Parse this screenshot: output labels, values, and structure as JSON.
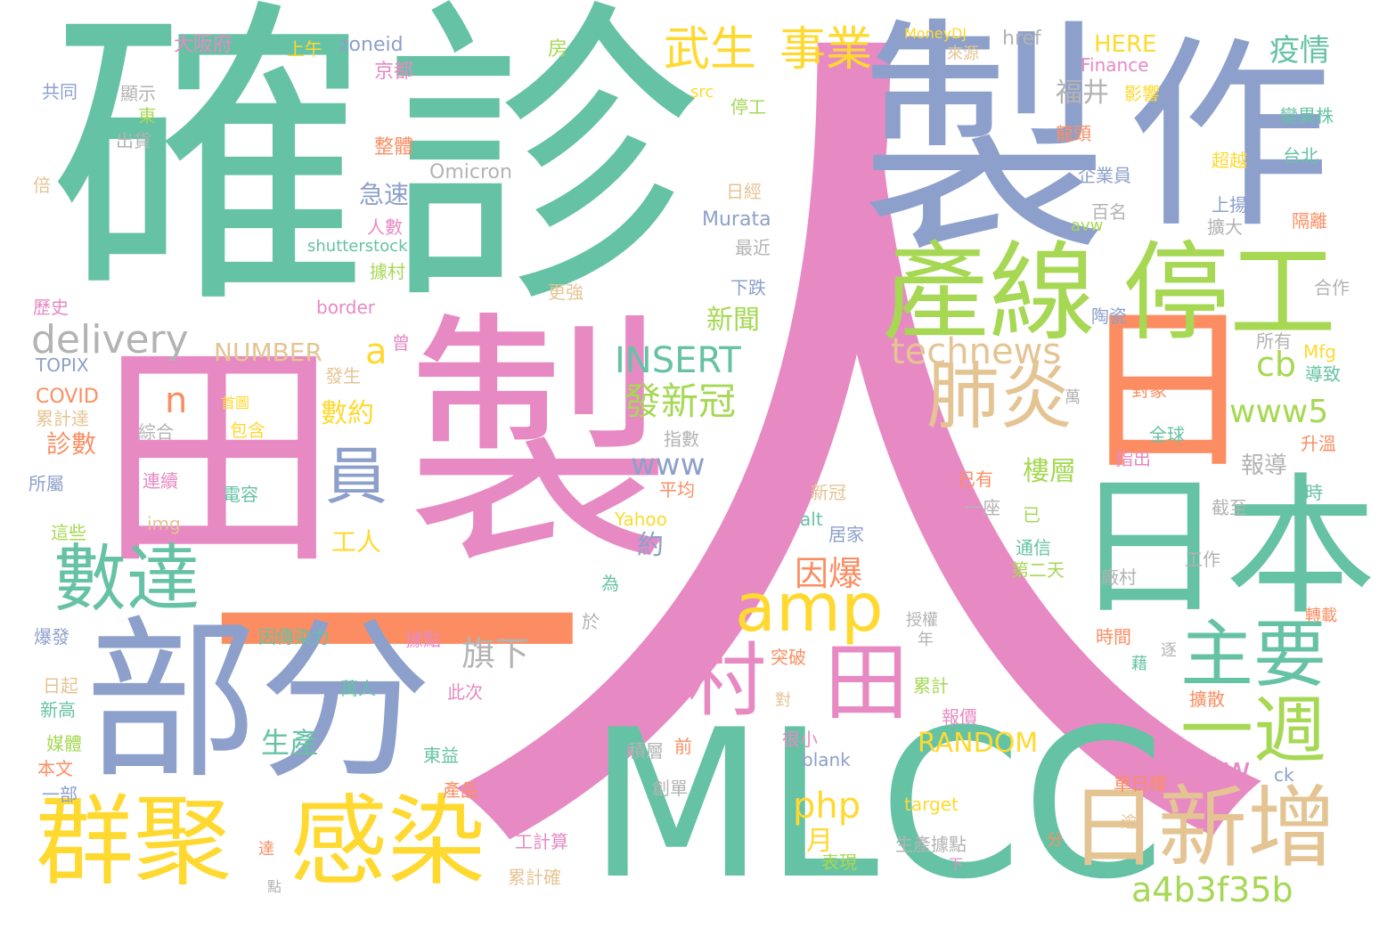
{
  "palette": {
    "teal": "#66c2a5",
    "orange": "#fc8d62",
    "blue": "#8da0cb",
    "pink": "#e78ac3",
    "green": "#a6d854",
    "yellow": "#ffd92f",
    "tan": "#e5c494",
    "gray": "#b3b3b3"
  },
  "words": [
    {
      "text": "人",
      "color": "pink"
    },
    {
      "text": "確",
      "color": "teal"
    },
    {
      "text": "診",
      "color": "teal"
    },
    {
      "text": "製",
      "color": "blue"
    },
    {
      "text": "作",
      "color": "blue"
    },
    {
      "text": "製",
      "color": "pink"
    },
    {
      "text": "田",
      "color": "pink"
    },
    {
      "text": "一",
      "color": "orange"
    },
    {
      "text": "部分",
      "color": "blue"
    },
    {
      "text": "MLCC",
      "color": "teal"
    },
    {
      "text": "日",
      "color": "orange"
    },
    {
      "text": "日本",
      "color": "teal"
    },
    {
      "text": "產線",
      "color": "green"
    },
    {
      "text": "停工",
      "color": "green"
    },
    {
      "text": "群聚",
      "color": "yellow"
    },
    {
      "text": "感染",
      "color": "yellow"
    },
    {
      "text": "日新增",
      "color": "tan"
    },
    {
      "text": "數達",
      "color": "teal"
    },
    {
      "text": "肺炎",
      "color": "tan"
    },
    {
      "text": "主要",
      "color": "teal"
    },
    {
      "text": "一週",
      "color": "green"
    },
    {
      "text": "村",
      "color": "pink"
    },
    {
      "text": "田",
      "color": "pink"
    },
    {
      "text": "amp",
      "color": "yellow"
    },
    {
      "text": "員",
      "color": "blue"
    },
    {
      "text": "武生",
      "color": "yellow"
    },
    {
      "text": "事業",
      "color": "yellow"
    },
    {
      "text": "delivery",
      "color": "gray"
    },
    {
      "text": "technews",
      "color": "tan"
    },
    {
      "text": "INSERT",
      "color": "teal"
    },
    {
      "text": "a4b3f35b",
      "color": "green"
    },
    {
      "text": "發新冠",
      "color": "green"
    },
    {
      "text": "www5",
      "color": "green"
    },
    {
      "text": "因爆",
      "color": "orange"
    },
    {
      "text": "旗下",
      "color": "gray"
    },
    {
      "text": "php",
      "color": "yellow"
    },
    {
      "text": "RANDOM",
      "color": "yellow"
    },
    {
      "text": "生產",
      "color": "teal"
    },
    {
      "text": "疫情",
      "color": "teal"
    },
    {
      "text": "福井",
      "color": "gray"
    },
    {
      "text": "新聞",
      "color": "green"
    },
    {
      "text": "數約",
      "color": "yellow"
    },
    {
      "text": "cb",
      "color": "green"
    },
    {
      "text": "tw",
      "color": "pink"
    },
    {
      "text": "www",
      "color": "blue"
    },
    {
      "text": "樓層",
      "color": "green"
    },
    {
      "text": "報導",
      "color": "gray"
    },
    {
      "text": "NUMBER",
      "color": "tan"
    },
    {
      "text": "急速",
      "color": "blue"
    },
    {
      "text": "診數",
      "color": "orange"
    },
    {
      "text": "工人",
      "color": "yellow"
    },
    {
      "text": "月",
      "color": "yellow"
    },
    {
      "text": "n",
      "color": "orange"
    },
    {
      "text": "a",
      "color": "yellow"
    },
    {
      "text": "約",
      "color": "blue"
    },
    {
      "text": "Omicron",
      "color": "gray"
    },
    {
      "text": "Murata",
      "color": "blue"
    },
    {
      "text": "HERE",
      "color": "yellow"
    },
    {
      "text": "Finance",
      "color": "pink"
    },
    {
      "text": "zoneid",
      "color": "blue"
    },
    {
      "text": "href",
      "color": "gray"
    },
    {
      "text": "MoneyDJ",
      "color": "yellow"
    },
    {
      "text": "shutterstock",
      "color": "teal"
    },
    {
      "text": "border",
      "color": "pink"
    },
    {
      "text": "TOPIX",
      "color": "blue"
    },
    {
      "text": "COVID",
      "color": "orange"
    },
    {
      "text": "Yahoo",
      "color": "yellow"
    },
    {
      "text": "img",
      "color": "tan"
    },
    {
      "text": "alt",
      "color": "teal"
    },
    {
      "text": "blank",
      "color": "blue"
    },
    {
      "text": "target",
      "color": "yellow"
    },
    {
      "text": "ck",
      "color": "blue"
    },
    {
      "text": "src",
      "color": "yellow"
    },
    {
      "text": "avw",
      "color": "green"
    },
    {
      "text": "Mfg",
      "color": "yellow"
    },
    {
      "text": "大阪府",
      "color": "pink"
    },
    {
      "text": "上午",
      "color": "yellow"
    },
    {
      "text": "京都",
      "color": "pink"
    },
    {
      "text": "房",
      "color": "green"
    },
    {
      "text": "共同",
      "color": "blue"
    },
    {
      "text": "顯示",
      "color": "gray"
    },
    {
      "text": "東",
      "color": "green"
    },
    {
      "text": "出貨",
      "color": "gray"
    },
    {
      "text": "倍",
      "color": "tan"
    },
    {
      "text": "整體",
      "color": "orange"
    },
    {
      "text": "停工",
      "color": "green"
    },
    {
      "text": "影響",
      "color": "yellow"
    },
    {
      "text": "龍頭",
      "color": "orange"
    },
    {
      "text": "變異株",
      "color": "teal"
    },
    {
      "text": "超越",
      "color": "yellow"
    },
    {
      "text": "台北",
      "color": "teal"
    },
    {
      "text": "企業員",
      "color": "blue"
    },
    {
      "text": "日經",
      "color": "tan"
    },
    {
      "text": "人數",
      "color": "pink"
    },
    {
      "text": "百名",
      "color": "gray"
    },
    {
      "text": "上揚",
      "color": "blue"
    },
    {
      "text": "擴大",
      "color": "gray"
    },
    {
      "text": "隔離",
      "color": "orange"
    },
    {
      "text": "最近",
      "color": "gray"
    },
    {
      "text": "據村",
      "color": "green"
    },
    {
      "text": "下跌",
      "color": "blue"
    },
    {
      "text": "更強",
      "color": "tan"
    },
    {
      "text": "合作",
      "color": "gray"
    },
    {
      "text": "歷史",
      "color": "pink"
    },
    {
      "text": "陶瓷",
      "color": "blue"
    },
    {
      "text": "曾",
      "color": "pink"
    },
    {
      "text": "發生",
      "color": "tan"
    },
    {
      "text": "所有",
      "color": "gray"
    },
    {
      "text": "導致",
      "color": "teal"
    },
    {
      "text": "對象",
      "color": "orange"
    },
    {
      "text": "萬",
      "color": "gray"
    },
    {
      "text": "首圖",
      "color": "yellow"
    },
    {
      "text": "包含",
      "color": "yellow"
    },
    {
      "text": "綜合",
      "color": "gray"
    },
    {
      "text": "累計達",
      "color": "tan"
    },
    {
      "text": "全球",
      "color": "teal"
    },
    {
      "text": "指出",
      "color": "pink"
    },
    {
      "text": "升溫",
      "color": "orange"
    },
    {
      "text": "指數",
      "color": "gray"
    },
    {
      "text": "所屬",
      "color": "blue"
    },
    {
      "text": "連續",
      "color": "pink"
    },
    {
      "text": "電容",
      "color": "teal"
    },
    {
      "text": "平均",
      "color": "orange"
    },
    {
      "text": "已有",
      "color": "orange"
    },
    {
      "text": "時",
      "color": "teal"
    },
    {
      "text": "新冠",
      "color": "tan"
    },
    {
      "text": "一座",
      "color": "gray"
    },
    {
      "text": "截至",
      "color": "gray"
    },
    {
      "text": "已",
      "color": "green"
    },
    {
      "text": "這些",
      "color": "green"
    },
    {
      "text": "居家",
      "color": "blue"
    },
    {
      "text": "通信",
      "color": "teal"
    },
    {
      "text": "工作",
      "color": "gray"
    },
    {
      "text": "第二天",
      "color": "green"
    },
    {
      "text": "為",
      "color": "teal"
    },
    {
      "text": "廠村",
      "color": "gray"
    },
    {
      "text": "於",
      "color": "gray"
    },
    {
      "text": "授權",
      "color": "gray"
    },
    {
      "text": "轉載",
      "color": "orange"
    },
    {
      "text": "爆發",
      "color": "blue"
    },
    {
      "text": "因傳染力",
      "color": "teal"
    },
    {
      "text": "據點",
      "color": "pink"
    },
    {
      "text": "年",
      "color": "gray"
    },
    {
      "text": "時間",
      "color": "orange"
    },
    {
      "text": "突破",
      "color": "orange"
    },
    {
      "text": "日起",
      "color": "tan"
    },
    {
      "text": "萬人",
      "color": "teal"
    },
    {
      "text": "此次",
      "color": "pink"
    },
    {
      "text": "累計",
      "color": "green"
    },
    {
      "text": "對",
      "color": "tan"
    },
    {
      "text": "擴散",
      "color": "orange"
    },
    {
      "text": "新高",
      "color": "teal"
    },
    {
      "text": "報價",
      "color": "pink"
    },
    {
      "text": "很小",
      "color": "pink"
    },
    {
      "text": "媒體",
      "color": "green"
    },
    {
      "text": "積層",
      "color": "gray"
    },
    {
      "text": "前",
      "color": "orange"
    },
    {
      "text": "本文",
      "color": "orange"
    },
    {
      "text": "東益",
      "color": "teal"
    },
    {
      "text": "一部",
      "color": "blue"
    },
    {
      "text": "產品",
      "color": "orange"
    },
    {
      "text": "創單",
      "color": "gray"
    },
    {
      "text": "單日確",
      "color": "orange"
    },
    {
      "text": "工染度",
      "color": "pink"
    },
    {
      "text": "逾",
      "color": "tan"
    },
    {
      "text": "工計算",
      "color": "pink"
    },
    {
      "text": "分",
      "color": "orange"
    },
    {
      "text": "達",
      "color": "orange"
    },
    {
      "text": "生產據點",
      "color": "gray"
    },
    {
      "text": "表現",
      "color": "green"
    },
    {
      "text": "下",
      "color": "pink"
    },
    {
      "text": "累計確",
      "color": "tan"
    },
    {
      "text": "點",
      "color": "gray"
    },
    {
      "text": "來源",
      "color": "tan"
    },
    {
      "text": "藉",
      "color": "teal"
    },
    {
      "text": "逐",
      "color": "gray"
    }
  ]
}
